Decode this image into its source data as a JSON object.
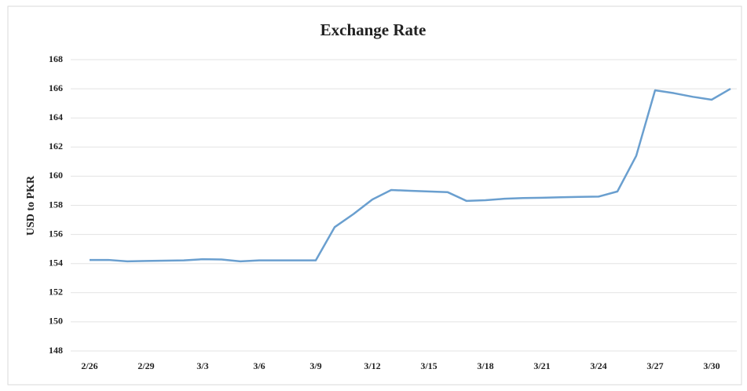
{
  "chart_data": {
    "type": "line",
    "title": "Exchange Rate",
    "y_label": "USD to PKR",
    "categories": [
      "2/26",
      null,
      null,
      "2/29",
      null,
      null,
      "3/3",
      null,
      null,
      "3/6",
      null,
      null,
      "3/9",
      null,
      null,
      "3/12",
      null,
      null,
      "3/15",
      null,
      null,
      "3/18",
      null,
      null,
      "3/21",
      null,
      null,
      "3/24",
      null,
      null,
      "3/27",
      null,
      null,
      "3/30",
      null
    ],
    "values": [
      154.25,
      154.25,
      154.15,
      154.18,
      154.2,
      154.22,
      154.3,
      154.28,
      154.15,
      154.22,
      154.22,
      154.22,
      154.22,
      156.5,
      157.4,
      158.4,
      159.05,
      159.0,
      158.95,
      158.9,
      158.3,
      158.35,
      158.45,
      158.5,
      158.52,
      158.55,
      158.58,
      158.6,
      158.95,
      161.4,
      165.9,
      165.7,
      165.45,
      165.25,
      166.0
    ],
    "color": "#6a9fcf",
    "ylim": [
      148,
      168
    ],
    "yticks": [
      148,
      150,
      152,
      154,
      156,
      158,
      160,
      162,
      164,
      166,
      168
    ],
    "grid": true
  }
}
